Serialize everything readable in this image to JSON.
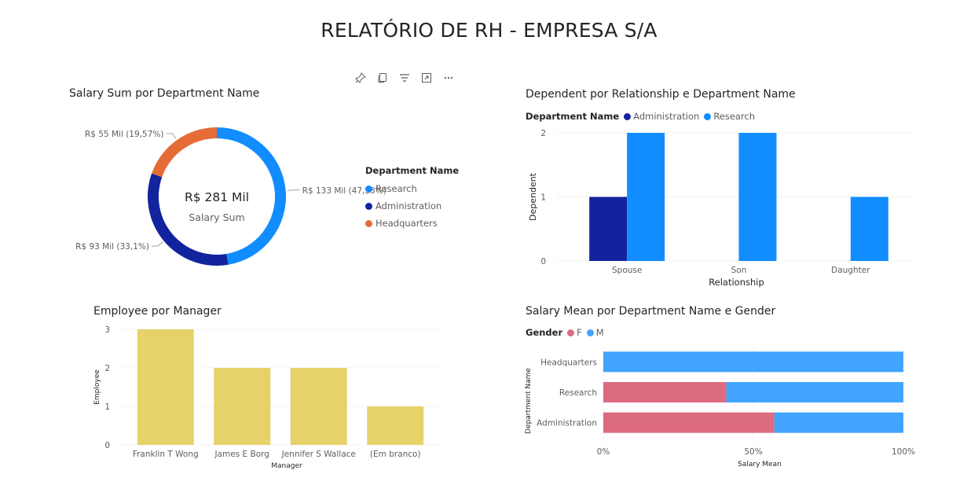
{
  "page": {
    "title": "RELATÓRIO DE RH - EMPRESA S/A"
  },
  "toolbar": {
    "icons": [
      "pin-icon",
      "copy-icon",
      "filter-icon",
      "focus-mode-icon",
      "more-options-icon"
    ]
  },
  "colors": {
    "blue": "#118DFF",
    "navy": "#12239E",
    "orange": "#E66C37",
    "yellow": "#E6D269",
    "pink": "#DD6B7F",
    "lightblue": "#41A4FF"
  },
  "chart_data": [
    {
      "type": "pie",
      "title": "Salary Sum por Department Name",
      "center_value": "R$ 281 Mil",
      "center_label": "Salary Sum",
      "legend_title": "Department Name",
      "slices": [
        {
          "name": "Research",
          "value": 133,
          "percent": 47.33,
          "label": "R$ 133 Mil (47,33%)",
          "color": "#118DFF"
        },
        {
          "name": "Administration",
          "value": 93,
          "percent": 33.1,
          "label": "R$ 93 Mil (33,1%)",
          "color": "#12239E"
        },
        {
          "name": "Headquarters",
          "value": 55,
          "percent": 19.57,
          "label": "R$ 55 Mil (19,57%)",
          "color": "#E66C37"
        }
      ]
    },
    {
      "type": "bar",
      "title": "Dependent por Relationship e Department Name",
      "legend_title": "Department Name",
      "categories": [
        "Spouse",
        "Son",
        "Daughter"
      ],
      "series": [
        {
          "name": "Administration",
          "values": [
            1,
            0,
            0
          ],
          "color": "#12239E"
        },
        {
          "name": "Research",
          "values": [
            2,
            2,
            1
          ],
          "color": "#118DFF"
        }
      ],
      "xlabel": "Relationship",
      "ylabel": "Dependent",
      "yticks": [
        "0",
        "1",
        "2"
      ],
      "ylim": [
        0,
        2
      ]
    },
    {
      "type": "bar",
      "title": "Employee por Manager",
      "categories": [
        "Franklin T Wong",
        "James E Borg",
        "Jennifer S Wallace",
        "(Em branco)"
      ],
      "values": [
        3,
        2,
        2,
        1
      ],
      "xlabel": "Manager",
      "ylabel": "Employee",
      "yticks": [
        "0",
        "1",
        "2",
        "3"
      ],
      "ylim": [
        0,
        3
      ],
      "color": "#E6D269"
    },
    {
      "type": "bar",
      "title": "Salary Mean por Department Name e Gender",
      "legend_title": "Gender",
      "categories": [
        "Headquarters",
        "Research",
        "Administration"
      ],
      "series": [
        {
          "name": "F",
          "values": [
            0,
            41,
            57
          ],
          "color": "#DD6B7F"
        },
        {
          "name": "M",
          "values": [
            100,
            59,
            43
          ],
          "color": "#41A4FF"
        }
      ],
      "xlabel": "Salary Mean",
      "ylabel": "Department Name",
      "xticks": [
        "0%",
        "50%",
        "100%"
      ],
      "xlim": [
        0,
        100
      ]
    }
  ]
}
